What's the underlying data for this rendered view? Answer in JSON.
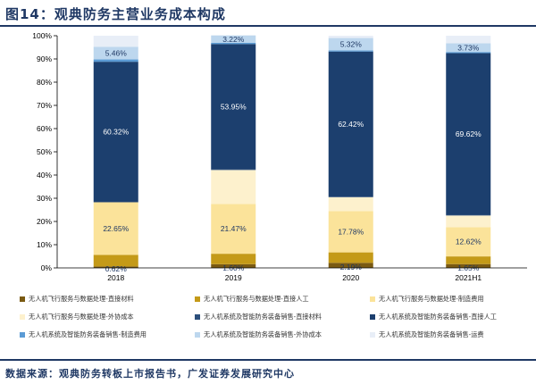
{
  "page": {
    "title": "图14：观典防务主营业务成本构成",
    "source": "数据来源：观典防务转板上市报告书，广发证券发展研究中心"
  },
  "chart_data": {
    "type": "bar",
    "stacked": true,
    "categories": [
      "2018",
      "2019",
      "2020",
      "2021H1"
    ],
    "ylim": [
      0,
      100
    ],
    "y_ticks": [
      "0%",
      "10%",
      "20%",
      "30%",
      "40%",
      "50%",
      "60%",
      "70%",
      "80%",
      "90%",
      "100%"
    ],
    "grid": false,
    "legend_position": "bottom",
    "series": [
      {
        "name": "无人机飞行服务与数据处理-直接材料",
        "color": "#7a5a12",
        "values": [
          0.62,
          1.6,
          2.19,
          1.65
        ]
      },
      {
        "name": "无人机飞行服务与数据处理-直接人工",
        "color": "#c49a18",
        "values": [
          5.0,
          4.5,
          4.5,
          3.3
        ]
      },
      {
        "name": "无人机飞行服务与数据处理-制造费用",
        "color": "#fbe39a",
        "values": [
          22.65,
          21.47,
          17.78,
          12.62
        ]
      },
      {
        "name": "无人机飞行服务与数据处理-外协成本",
        "color": "#fdf1cd",
        "values": [
          0.0,
          14.6,
          6.0,
          5.0
        ]
      },
      {
        "name": "无人机系统及智能防务装备销售-直接材料",
        "color": "#2c4f7c",
        "values": [
          0.2,
          0.3,
          0.3,
          0.3
        ]
      },
      {
        "name": "无人机系统及智能防务装备销售-直接人工",
        "color": "#1c3f6e",
        "values": [
          60.32,
          53.95,
          62.42,
          69.62
        ]
      },
      {
        "name": "无人机系统及智能防务装备销售-制造费用",
        "color": "#5b9bd5",
        "values": [
          1.0,
          0.5,
          0.5,
          0.5
        ]
      },
      {
        "name": "无人机系统及智能防务装备销售-外协成本",
        "color": "#bdd7ee",
        "values": [
          5.46,
          3.22,
          5.32,
          3.73
        ]
      },
      {
        "name": "无人机系统及智能防务装备销售-运费",
        "color": "#e8eef7",
        "values": [
          4.75,
          0.0,
          1.0,
          3.28
        ]
      }
    ],
    "data_labels": [
      {
        "series": 0,
        "category": 0,
        "text": "0.62%"
      },
      {
        "series": 0,
        "category": 1,
        "text": "1.60%"
      },
      {
        "series": 0,
        "category": 2,
        "text": "2.19%"
      },
      {
        "series": 0,
        "category": 3,
        "text": "1.65%"
      },
      {
        "series": 2,
        "category": 0,
        "text": "22.65%"
      },
      {
        "series": 2,
        "category": 1,
        "text": "21.47%"
      },
      {
        "series": 2,
        "category": 2,
        "text": "17.78%"
      },
      {
        "series": 2,
        "category": 3,
        "text": "12.62%"
      },
      {
        "series": 5,
        "category": 0,
        "text": "60.32%"
      },
      {
        "series": 5,
        "category": 1,
        "text": "53.95%"
      },
      {
        "series": 5,
        "category": 2,
        "text": "62.42%"
      },
      {
        "series": 5,
        "category": 3,
        "text": "69.62%"
      },
      {
        "series": 7,
        "category": 0,
        "text": "5.46%"
      },
      {
        "series": 7,
        "category": 1,
        "text": "3.22%"
      },
      {
        "series": 7,
        "category": 2,
        "text": "5.32%"
      },
      {
        "series": 7,
        "category": 3,
        "text": "3.73%"
      }
    ]
  }
}
